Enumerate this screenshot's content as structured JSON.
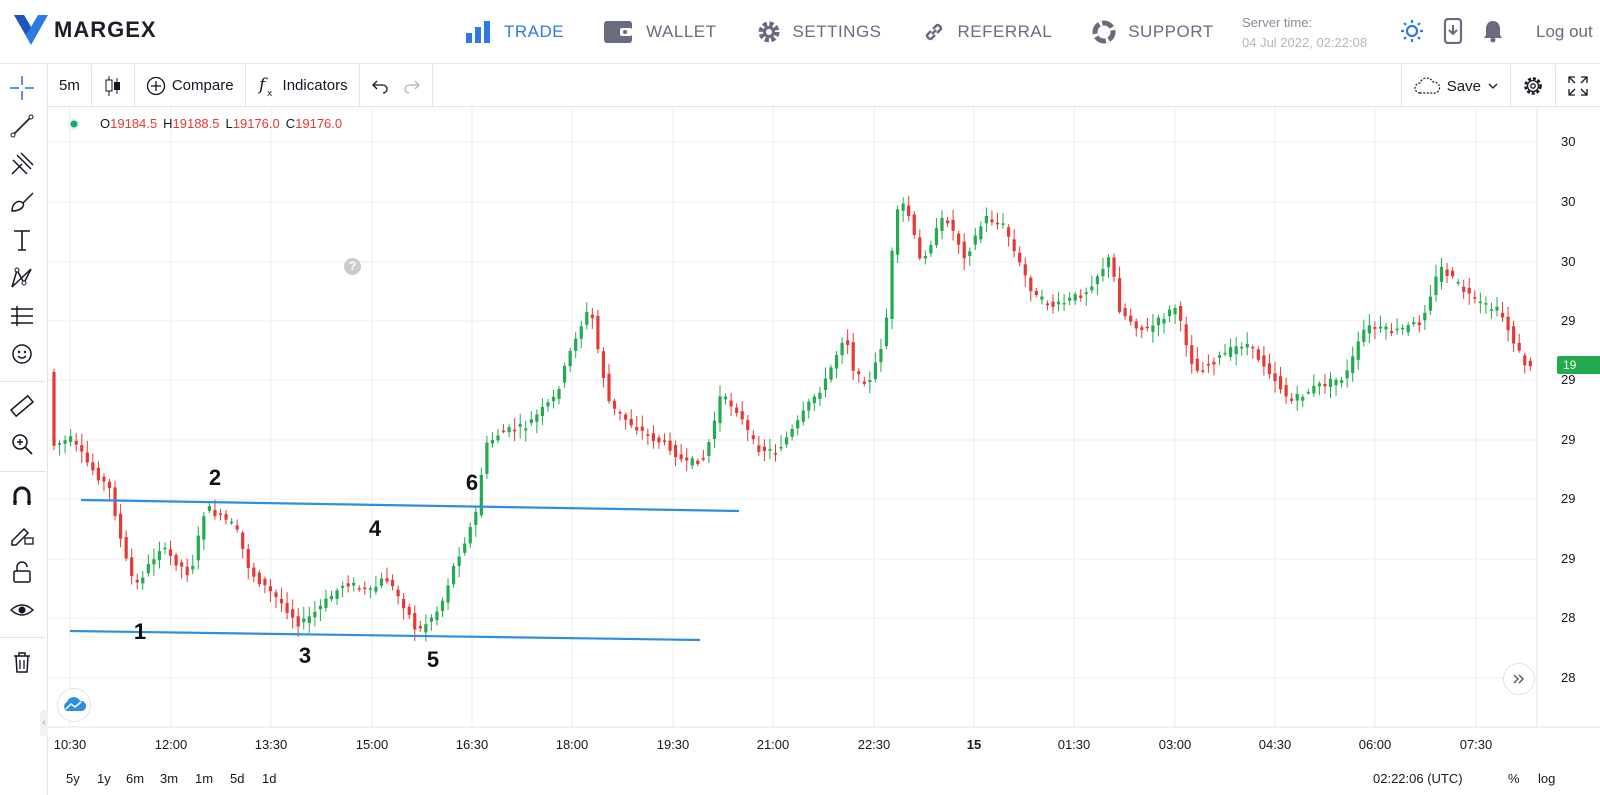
{
  "brand": {
    "name": "MARGEX"
  },
  "nav": {
    "items": [
      {
        "label": "TRADE",
        "icon": "bar-chart-icon",
        "active": true
      },
      {
        "label": "WALLET",
        "icon": "wallet-icon",
        "active": false
      },
      {
        "label": "SETTINGS",
        "icon": "gear-icon",
        "active": false
      },
      {
        "label": "REFERRAL",
        "icon": "link-icon",
        "active": false
      },
      {
        "label": "SUPPORT",
        "icon": "lifebuoy-icon",
        "active": false
      }
    ]
  },
  "server": {
    "label": "Server time:",
    "time": "04 Jul 2022, 02:22:08"
  },
  "account": {
    "logout": "Log out"
  },
  "toolbar": {
    "interval": "5m",
    "compare": "Compare",
    "indicators": "Indicators",
    "save": "Save"
  },
  "legend": {
    "o_label": "O",
    "o": "19184.5",
    "h_label": "H",
    "h": "19188.5",
    "l_label": "L",
    "l": "19176.0",
    "c_label": "C",
    "c": "19176.0"
  },
  "help_mark": "?",
  "price_tag": "19",
  "bottom": {
    "ranges": [
      "5y",
      "1y",
      "6m",
      "3m",
      "1m",
      "5d",
      "1d"
    ],
    "clock": "02:22:06 (UTC)",
    "percent": "%",
    "log": "log"
  },
  "chart_data": {
    "type": "candlestick",
    "x_ticks": [
      "10:30",
      "12:00",
      "13:30",
      "15:00",
      "16:30",
      "18:00",
      "19:30",
      "21:00",
      "22:30",
      "15",
      "01:30",
      "03:00",
      "04:30",
      "06:00",
      "07:30"
    ],
    "right_axis_ticks": [
      "30",
      "30",
      "30",
      "29",
      "29",
      "29",
      "29",
      "29",
      "28",
      "28"
    ],
    "colors": {
      "up": "#22ab4f",
      "down": "#e53935",
      "trendline": "#2e8fe0"
    },
    "grid": true,
    "annotations": [
      "1",
      "2",
      "3",
      "4",
      "5",
      "6"
    ],
    "trendlines": 2
  }
}
